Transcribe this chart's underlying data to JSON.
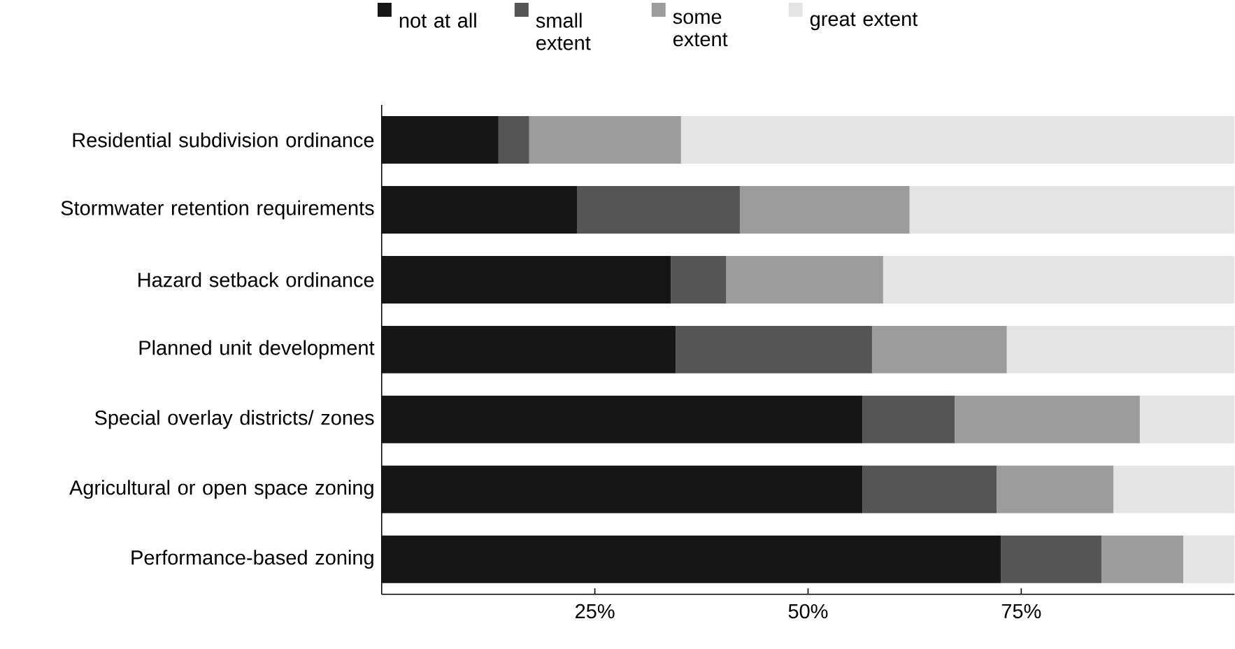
{
  "chart_data": {
    "type": "bar",
    "orientation": "horizontal",
    "stacked": true,
    "legend": "top",
    "categories": [
      "Residential subdivision ordinance",
      "Stormwater retention requirements",
      "Hazard setback ordinance",
      "Planned unit development",
      "Special overlay districts/ zones",
      "Agricultural or open space zoning",
      "Performance-based zoning"
    ],
    "series": [
      {
        "name": "not at all",
        "color": "#161616",
        "values": [
          13.7,
          22.9,
          33.9,
          34.5,
          56.4,
          56.4,
          72.6
        ]
      },
      {
        "name": "small extent",
        "color": "#555555",
        "values": [
          3.6,
          19.1,
          6.5,
          23.0,
          10.8,
          15.7,
          11.8
        ]
      },
      {
        "name": "some extent",
        "color": "#9c9c9c",
        "values": [
          17.8,
          19.9,
          18.4,
          15.8,
          21.7,
          13.7,
          9.6
        ]
      },
      {
        "name": "great extent",
        "color": "#e4e4e4",
        "values": [
          64.9,
          38.1,
          41.2,
          26.7,
          11.1,
          14.2,
          6.0
        ]
      }
    ],
    "xlim": [
      0,
      100
    ],
    "xticks": [
      {
        "value": 25,
        "label": "25%"
      },
      {
        "value": 50,
        "label": "50%"
      },
      {
        "value": 75,
        "label": "75%"
      }
    ]
  }
}
